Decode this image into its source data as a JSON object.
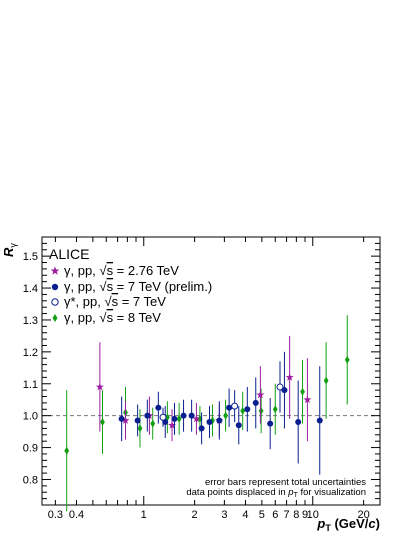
{
  "chart_data": {
    "type": "scatter",
    "title": "",
    "xlabel": "p_T (GeV/c)",
    "xlabel_parts": {
      "p": "p",
      "sub": "T",
      "rest": " (GeV/",
      "c": "c",
      "close": ")"
    },
    "ylabel": "R_γ",
    "ylabel_parts": {
      "r": "R",
      "sub": "γ"
    },
    "x_scale": "log",
    "xlim": [
      0.25,
      25
    ],
    "ylim": [
      0.72,
      1.56
    ],
    "x_ticks": [
      {
        "v": 0.3,
        "label": "0.3"
      },
      {
        "v": 0.4,
        "label": "0.4"
      },
      {
        "v": 1,
        "label": "1"
      },
      {
        "v": 2,
        "label": "2"
      },
      {
        "v": 3,
        "label": "3"
      },
      {
        "v": 4,
        "label": "4"
      },
      {
        "v": 5,
        "label": "5"
      },
      {
        "v": 6,
        "label": "6"
      },
      {
        "v": 7,
        "label": "7"
      },
      {
        "v": 8,
        "label": "8"
      },
      {
        "v": 9,
        "label": "9"
      },
      {
        "v": 10,
        "label": "10"
      },
      {
        "v": 20,
        "label": "20"
      }
    ],
    "y_ticks": [
      {
        "v": 0.8,
        "label": "0.8"
      },
      {
        "v": 0.9,
        "label": "0.9"
      },
      {
        "v": 1.0,
        "label": "1.0"
      },
      {
        "v": 1.1,
        "label": "1.1"
      },
      {
        "v": 1.2,
        "label": "1.2"
      },
      {
        "v": 1.3,
        "label": "1.3"
      },
      {
        "v": 1.4,
        "label": "1.4"
      },
      {
        "v": 1.5,
        "label": "1.5"
      }
    ],
    "reference_line": {
      "y": 1.0,
      "style": "dashed"
    },
    "grid": false,
    "legend_position": "top-left",
    "series": [
      {
        "name": "γ, pp, √s = 2.76 TeV",
        "legend": {
          "pre": "γ, pp, ",
          "sq": "s",
          "post": " = 2.76 TeV"
        },
        "marker": "star",
        "color": "#9b1fa0",
        "points": [
          {
            "x": 0.55,
            "y": 1.09,
            "err": 0.14
          },
          {
            "x": 0.78,
            "y": 0.985,
            "err": 0.06
          },
          {
            "x": 1.08,
            "y": 1.0,
            "err": 0.06
          },
          {
            "x": 1.47,
            "y": 0.97,
            "err": 0.05
          },
          {
            "x": 2.05,
            "y": 0.99,
            "err": 0.05
          },
          {
            "x": 2.8,
            "y": 0.985,
            "err": 0.05
          },
          {
            "x": 4.9,
            "y": 1.065,
            "err": 0.09
          },
          {
            "x": 7.3,
            "y": 1.12,
            "err": 0.13
          },
          {
            "x": 9.3,
            "y": 1.05,
            "err": 0.13
          }
        ]
      },
      {
        "name": "γ, pp, √s = 7 TeV (prelim.)",
        "legend": {
          "pre": "γ, pp, ",
          "sq": "s",
          "post": " = 7 TeV (prelim.)"
        },
        "marker": "circle",
        "color": "#0a1f8f",
        "points": [
          {
            "x": 0.74,
            "y": 0.99,
            "err": 0.07
          },
          {
            "x": 0.92,
            "y": 0.985,
            "err": 0.05
          },
          {
            "x": 1.05,
            "y": 1.0,
            "err": 0.05
          },
          {
            "x": 1.22,
            "y": 1.025,
            "err": 0.05
          },
          {
            "x": 1.34,
            "y": 0.98,
            "err": 0.05
          },
          {
            "x": 1.52,
            "y": 0.99,
            "err": 0.05
          },
          {
            "x": 1.72,
            "y": 1.0,
            "err": 0.05
          },
          {
            "x": 1.92,
            "y": 1.0,
            "err": 0.05
          },
          {
            "x": 2.2,
            "y": 0.96,
            "err": 0.05
          },
          {
            "x": 2.45,
            "y": 0.98,
            "err": 0.05
          },
          {
            "x": 2.8,
            "y": 0.985,
            "err": 0.06
          },
          {
            "x": 3.2,
            "y": 1.025,
            "err": 0.06
          },
          {
            "x": 3.65,
            "y": 0.97,
            "err": 0.06
          },
          {
            "x": 4.1,
            "y": 1.02,
            "err": 0.07
          },
          {
            "x": 4.6,
            "y": 1.04,
            "err": 0.08
          },
          {
            "x": 5.6,
            "y": 0.975,
            "err": 0.08
          },
          {
            "x": 6.8,
            "y": 1.08,
            "err": 0.12
          },
          {
            "x": 8.2,
            "y": 0.98,
            "err": 0.13
          },
          {
            "x": 11.0,
            "y": 0.985,
            "err": 0.17
          }
        ]
      },
      {
        "name": "γ*, pp, √s = 7 TeV",
        "legend": {
          "pre": "γ*, pp, ",
          "sq": "s",
          "post": " = 7 TeV"
        },
        "marker": "open-circle",
        "color": "#0a1f8f",
        "points": [
          {
            "x": 1.3,
            "y": 0.995,
            "err": 0.03
          },
          {
            "x": 3.45,
            "y": 1.03,
            "err": 0.05
          },
          {
            "x": 6.4,
            "y": 1.09,
            "err": 0.08
          }
        ]
      },
      {
        "name": "γ, pp, √s = 8 TeV",
        "legend": {
          "pre": "γ, pp, ",
          "sq": "s",
          "post": " = 8 TeV"
        },
        "marker": "diamond",
        "color": "#12a012",
        "points": [
          {
            "x": 0.35,
            "y": 0.89,
            "err": 0.19
          },
          {
            "x": 0.57,
            "y": 0.98,
            "err": 0.1
          },
          {
            "x": 0.78,
            "y": 1.01,
            "err": 0.08
          },
          {
            "x": 0.95,
            "y": 0.96,
            "err": 0.06
          },
          {
            "x": 1.13,
            "y": 0.975,
            "err": 0.05
          },
          {
            "x": 1.38,
            "y": 0.995,
            "err": 0.05
          },
          {
            "x": 1.62,
            "y": 0.99,
            "err": 0.05
          },
          {
            "x": 2.15,
            "y": 0.99,
            "err": 0.04
          },
          {
            "x": 2.55,
            "y": 0.985,
            "err": 0.05
          },
          {
            "x": 3.05,
            "y": 1.0,
            "err": 0.05
          },
          {
            "x": 3.85,
            "y": 1.015,
            "err": 0.06
          },
          {
            "x": 4.95,
            "y": 1.015,
            "err": 0.07
          },
          {
            "x": 6.0,
            "y": 1.02,
            "err": 0.08
          },
          {
            "x": 8.7,
            "y": 1.075,
            "err": 0.1
          },
          {
            "x": 12.0,
            "y": 1.11,
            "err": 0.12
          },
          {
            "x": 16.0,
            "y": 1.175,
            "err": 0.14
          }
        ]
      }
    ],
    "annotations": {
      "experiment": "ALICE",
      "note1": "error bars represent total uncertainties",
      "note2": {
        "pre": "data points displaced in ",
        "p": "p",
        "sub": "T",
        "post": " for visualization"
      }
    }
  }
}
